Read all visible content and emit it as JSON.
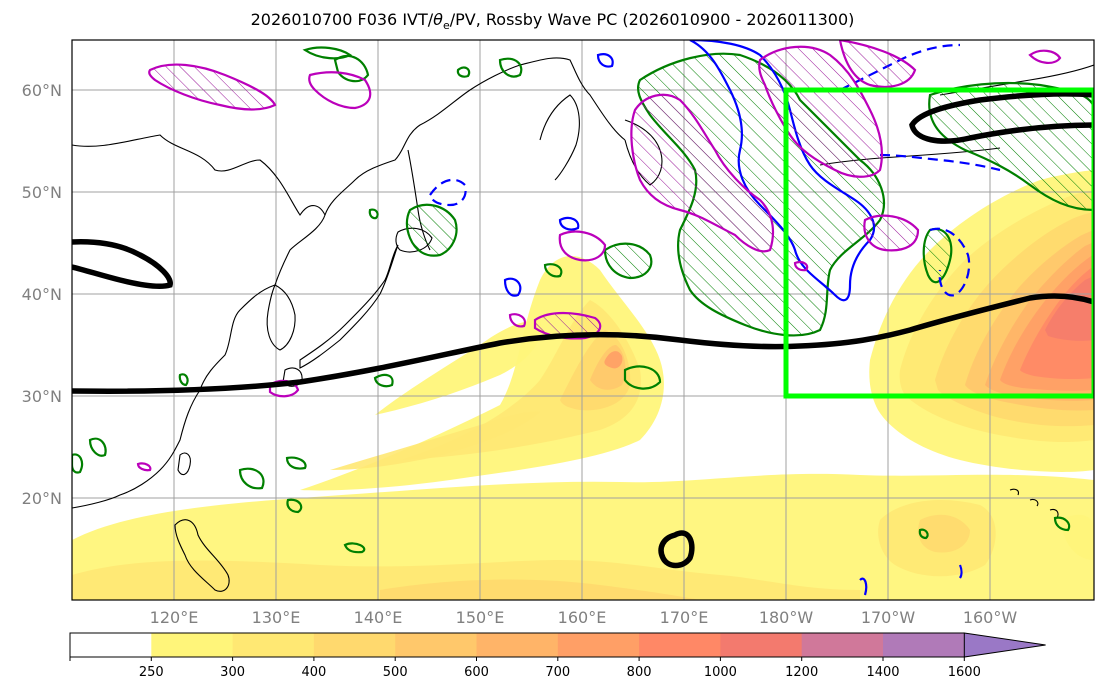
{
  "title_prefix": "2026010700 F036 IVT/",
  "title_theta": "θ",
  "title_sub": "e",
  "title_suffix": "/PV, Rossby Wave PC (2026010900 - 2026011300)",
  "lat_labels": [
    "60°N",
    "50°N",
    "40°N",
    "30°N",
    "20°N"
  ],
  "lon_labels": [
    "120°E",
    "130°E",
    "140°E",
    "150°E",
    "160°E",
    "170°E",
    "180°W",
    "170°W",
    "160°W"
  ],
  "colorbar": {
    "labels": [
      "250",
      "300",
      "400",
      "500",
      "600",
      "700",
      "800",
      "1000",
      "1200",
      "1400",
      "1600"
    ],
    "colors": [
      "#ffffff",
      "#fff57a",
      "#ffe873",
      "#ffd96e",
      "#ffc86b",
      "#ffb468",
      "#ff9f66",
      "#ff8866",
      "#f37a6e",
      "#d0789a",
      "#b07ab8",
      "#9a78c6"
    ]
  },
  "colors": {
    "jet": "#000000",
    "box": "#00ff00",
    "green_contour": "#008000",
    "blue_contour": "#0000ff",
    "magenta_contour": "#bb00bb",
    "grid": "#a0a0a0"
  }
}
